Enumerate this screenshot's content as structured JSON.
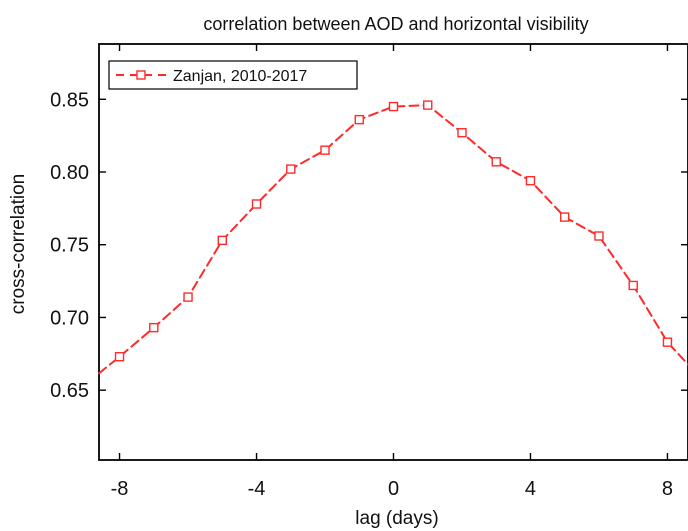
{
  "chart_data": {
    "type": "line",
    "title": "correlation between AOD and horizontal visibility",
    "xlabel": "lag (days)",
    "ylabel": "cross-correlation",
    "xlim": [
      -8.6,
      8.6
    ],
    "ylim": [
      0.602,
      0.888
    ],
    "xticks": [
      -8,
      -4,
      0,
      4,
      8
    ],
    "yticks": [
      0.65,
      0.7,
      0.75,
      0.8,
      0.85
    ],
    "x_tick_labels": [
      "-8",
      "-4",
      "0",
      "4",
      "8"
    ],
    "y_tick_labels": [
      "0.65",
      "0.70",
      "0.75",
      "0.80",
      "0.85"
    ],
    "grid": false,
    "legend_position": "top-left",
    "line_start": {
      "x": -8.6,
      "y": 0.6616
    },
    "line_end": {
      "x": 8.6,
      "y": 0.6677
    },
    "series": [
      {
        "name": "Zanjan, 2010-2017",
        "color": "#ff2a2a",
        "line_style": "dashed",
        "marker": "square",
        "x": [
          -8,
          -7,
          -6,
          -5,
          -4,
          -3,
          -2,
          -1,
          0,
          1,
          2,
          3,
          4,
          5,
          6,
          7,
          8
        ],
        "values": [
          0.673,
          0.693,
          0.714,
          0.753,
          0.778,
          0.802,
          0.815,
          0.836,
          0.845,
          0.846,
          0.827,
          0.807,
          0.794,
          0.769,
          0.756,
          0.722,
          0.683
        ]
      }
    ]
  }
}
